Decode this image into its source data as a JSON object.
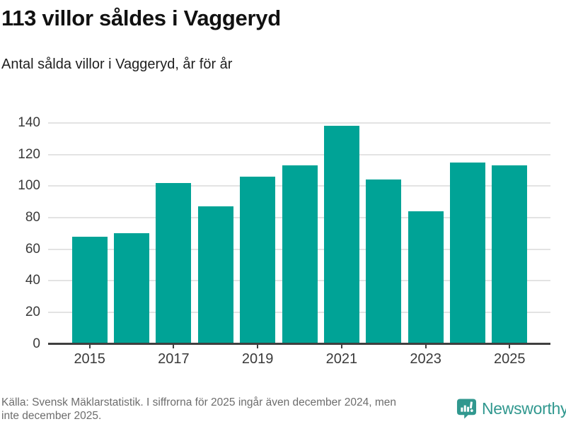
{
  "chart_data": {
    "type": "bar",
    "title": "113 villor såldes i Vaggeryd",
    "subtitle": "Antal sålda villor i Vaggeryd, år för år",
    "categories": [
      "2015",
      "2016",
      "2017",
      "2018",
      "2019",
      "2020",
      "2021",
      "2022",
      "2023",
      "2024",
      "2025"
    ],
    "values": [
      68,
      70,
      102,
      87,
      106,
      113,
      138,
      104,
      84,
      115,
      113
    ],
    "xlabel": "",
    "ylabel": "",
    "ylim": [
      0,
      140
    ],
    "yticks": [
      0,
      20,
      40,
      60,
      80,
      100,
      120,
      140
    ],
    "xticks_shown": [
      "2015",
      "2017",
      "2019",
      "2021",
      "2023",
      "2025"
    ],
    "grid": "horizontal",
    "legend": "none"
  },
  "colors": {
    "bar": "#00a396",
    "grid": "#e3e3e3",
    "axis": "#3f3f3f",
    "tick_label": "#3a3a3a",
    "title": "#111111",
    "subtitle": "#1f1f1f",
    "source_text": "#6d6d6d",
    "brand": "#31988f"
  },
  "footer": {
    "source_line1": "Källa: Svensk Mäklarstatistik. I siffrorna för 2025 ingår även december 2024, men",
    "source_line2": "inte december 2025.",
    "brand_name": "Newsworthy",
    "brand_icon": "speech-bubble-bar-chart-icon"
  }
}
